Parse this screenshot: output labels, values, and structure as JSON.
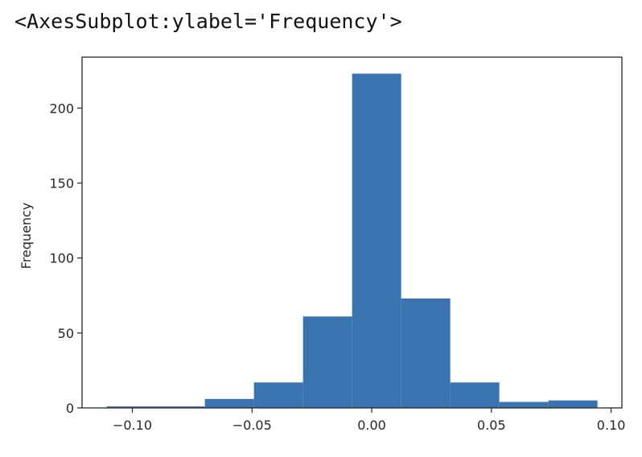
{
  "output_text": "<AxesSubplot:ylabel='Frequency'>",
  "colors": {
    "bar": "#3a74b0",
    "axes": "#262626",
    "background": "#ffffff"
  },
  "chart_data": {
    "type": "bar",
    "title": "",
    "xlabel": "",
    "ylabel": "Frequency",
    "bin_edges": [
      -0.1107,
      -0.0902,
      -0.0697,
      -0.0492,
      -0.0287,
      -0.0082,
      0.0123,
      0.0328,
      0.0533,
      0.0738,
      0.0943
    ],
    "values": [
      1,
      1,
      6,
      17,
      61,
      223,
      73,
      17,
      4,
      5
    ],
    "xlim": [
      -0.121,
      0.1045
    ],
    "ylim": [
      0,
      234
    ],
    "xticks": [
      -0.1,
      -0.05,
      0.0,
      0.05,
      0.1
    ],
    "xtick_labels": [
      "−0.10",
      "−0.05",
      "0.00",
      "0.05",
      "0.10"
    ],
    "yticks": [
      0,
      50,
      100,
      150,
      200
    ],
    "ytick_labels": [
      "0",
      "50",
      "100",
      "150",
      "200"
    ],
    "grid": false,
    "legend": "none"
  }
}
